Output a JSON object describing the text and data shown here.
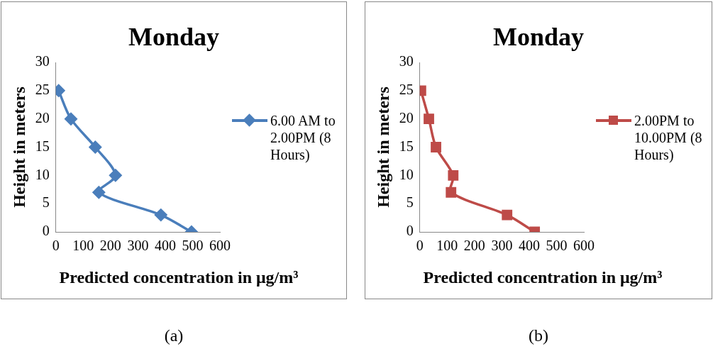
{
  "chart_data": [
    {
      "type": "line",
      "title": "Monday",
      "xlabel": "Predicted concentration in μg/m³",
      "ylabel": "Height in meters",
      "xlim": [
        0,
        600
      ],
      "xticks": [
        0,
        100,
        200,
        300,
        400,
        500,
        600
      ],
      "ylim": [
        0,
        30
      ],
      "yticks": [
        0,
        5,
        10,
        15,
        20,
        25,
        30
      ],
      "grid": false,
      "legend": "right",
      "marker": "diamond",
      "series": [
        {
          "name": "6.00 AM to 2.00PM (8 Hours)",
          "color": "#4a7ebb",
          "x": [
            10,
            55,
            144,
            218,
            157,
            384,
            496
          ],
          "values": [
            25,
            20,
            15,
            10,
            7,
            3,
            0
          ]
        }
      ],
      "annotations": [
        "(a)"
      ]
    },
    {
      "type": "line",
      "title": "Monday",
      "xlabel": "Predicted concentration in μg/m³",
      "ylabel": "Height in meters",
      "xlim": [
        0,
        600
      ],
      "xticks": [
        0,
        100,
        200,
        300,
        400,
        500,
        600
      ],
      "ylim": [
        0,
        30
      ],
      "yticks": [
        0,
        5,
        10,
        15,
        20,
        25,
        30
      ],
      "grid": false,
      "legend": "right",
      "marker": "square",
      "series": [
        {
          "name": "2.00PM to 10.00PM (8 Hours)",
          "color": "#be4b48",
          "x": [
            4,
            33,
            59,
            122,
            114,
            319,
            420
          ],
          "values": [
            25,
            20,
            15,
            10,
            7,
            3,
            0
          ]
        }
      ],
      "annotations": [
        "(b)"
      ]
    }
  ]
}
